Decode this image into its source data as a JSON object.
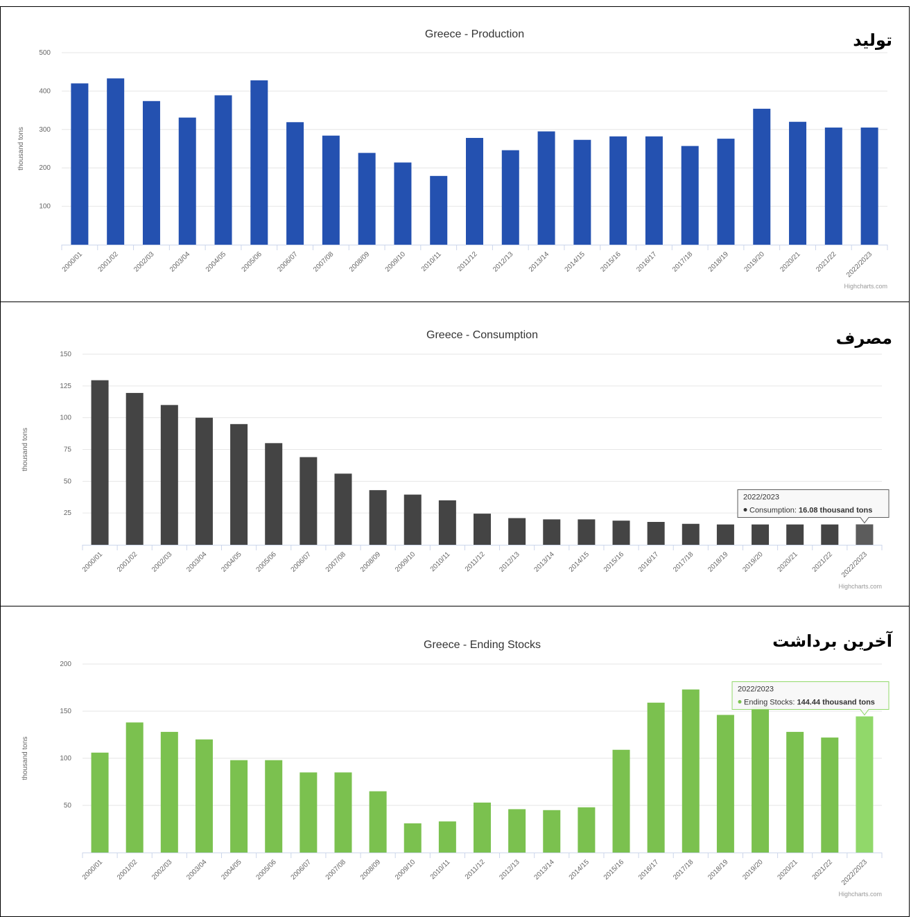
{
  "colors": {
    "production": "#2451b0",
    "consumption": "#444444",
    "consumption_hover": "#5c5c5c",
    "stocks": "#7bc14f",
    "stocks_hover": "#91d86a",
    "grid": "#e6e6e6"
  },
  "panels": [
    {
      "fa_label": "تولید",
      "credit": "Highcharts.com"
    },
    {
      "fa_label": "مصرف",
      "credit": "Highcharts.com"
    },
    {
      "fa_label": "آخرین برداشت",
      "credit": "Highcharts.com"
    }
  ],
  "chart_data": [
    {
      "type": "bar",
      "title": "Greece - Production",
      "ylabel": "thousand tons",
      "ylim": [
        0,
        500
      ],
      "yticks": [
        100,
        200,
        300,
        400,
        500
      ],
      "categories": [
        "2000/01",
        "2001/02",
        "2002/03",
        "2003/04",
        "2004/05",
        "2005/06",
        "2006/07",
        "2007/08",
        "2008/09",
        "2009/10",
        "2010/11",
        "2011/12",
        "2012/13",
        "2013/14",
        "2014/15",
        "2015/16",
        "2016/17",
        "2017/18",
        "2018/19",
        "2019/20",
        "2020/21",
        "2021/22",
        "2022/2023"
      ],
      "series": [
        {
          "values": [
            420,
            433,
            374,
            331,
            389,
            428,
            319,
            284,
            239,
            214,
            179,
            278,
            246,
            295,
            273,
            282,
            282,
            257,
            276,
            354,
            320,
            305,
            305
          ]
        }
      ]
    },
    {
      "type": "bar",
      "title": "Greece - Consumption",
      "ylabel": "thousand tons",
      "ylim": [
        0,
        150
      ],
      "yticks": [
        25,
        50,
        75,
        100,
        125,
        150
      ],
      "categories": [
        "2000/01",
        "2001/02",
        "2002/03",
        "2003/04",
        "2004/05",
        "2005/06",
        "2006/07",
        "2007/08",
        "2008/09",
        "2009/10",
        "2010/11",
        "2011/12",
        "2012/13",
        "2013/14",
        "2014/15",
        "2015/16",
        "2016/17",
        "2017/18",
        "2018/19",
        "2019/20",
        "2020/21",
        "2021/22",
        "2022/2023"
      ],
      "series": [
        {
          "name": "Consumption",
          "values": [
            129.5,
            119.5,
            110,
            100,
            95,
            80,
            69,
            56,
            43,
            39.5,
            35,
            24.5,
            21,
            20,
            20,
            19,
            18,
            16.5,
            16,
            16,
            16,
            16,
            16.08
          ]
        }
      ],
      "tooltip": {
        "header": "2022/2023",
        "series": "Consumption",
        "value_text": "16.08 thousand tons"
      }
    },
    {
      "type": "bar",
      "title": "Greece - Ending Stocks",
      "ylabel": "thousand tons",
      "ylim": [
        0,
        200
      ],
      "yticks": [
        50,
        100,
        150,
        200
      ],
      "categories": [
        "2000/01",
        "2001/02",
        "2002/03",
        "2003/04",
        "2004/05",
        "2005/06",
        "2006/07",
        "2007/08",
        "2008/09",
        "2009/10",
        "2010/11",
        "2011/12",
        "2012/13",
        "2013/14",
        "2014/15",
        "2015/16",
        "2016/17",
        "2017/18",
        "2018/19",
        "2019/20",
        "2020/21",
        "2021/22",
        "2022/2023"
      ],
      "series": [
        {
          "name": "Ending Stocks",
          "values": [
            106,
            138,
            128,
            120,
            98,
            98,
            85,
            85,
            65,
            31,
            33,
            53,
            46,
            45,
            48,
            109,
            159,
            173,
            146,
            155,
            128,
            122,
            144.44
          ]
        }
      ],
      "tooltip": {
        "header": "2022/2023",
        "series": "Ending Stocks",
        "value_text": "144.44 thousand tons"
      }
    }
  ]
}
